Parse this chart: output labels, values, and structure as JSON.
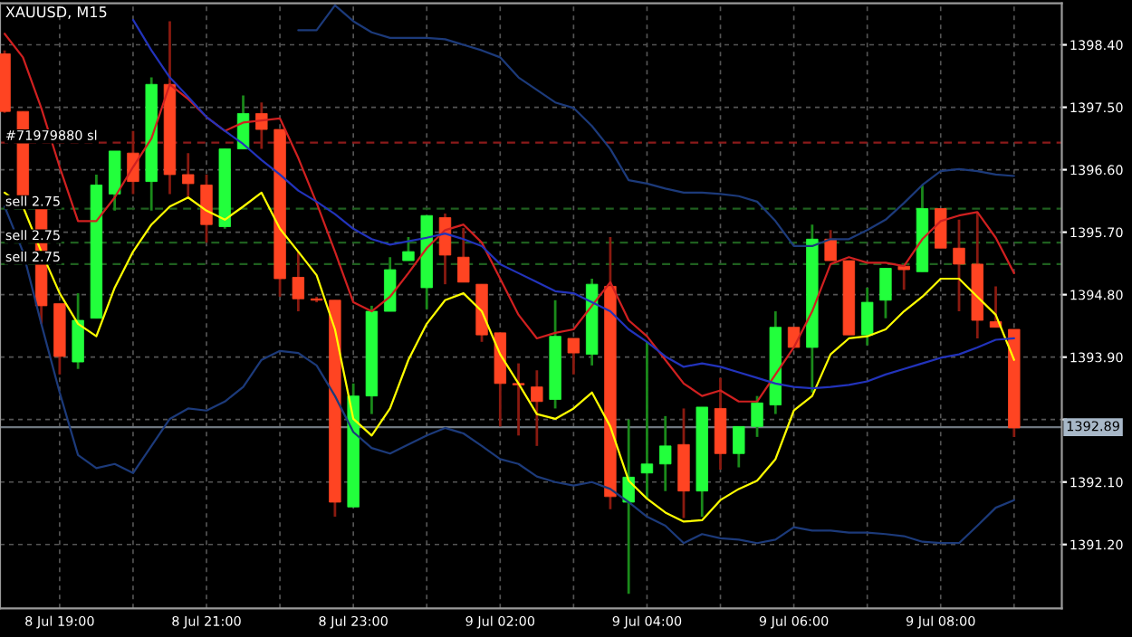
{
  "chart_data": {
    "type": "candlestick",
    "title": "XAUUSD, M15",
    "categories": [
      null,
      null,
      null,
      "8 Jul 19:00",
      null,
      null,
      null,
      null,
      null,
      null,
      null,
      "8 Jul 21:00",
      null,
      null,
      null,
      null,
      null,
      null,
      null,
      "8 Jul 23:00",
      null,
      null,
      null,
      null,
      null,
      null,
      null,
      "9 Jul 02:00",
      null,
      null,
      null,
      null,
      null,
      null,
      null,
      "9 Jul 04:00",
      null,
      null,
      null,
      null,
      null,
      null,
      null,
      "9 Jul 06:00",
      null,
      null,
      null,
      null,
      null,
      null,
      null,
      "9 Jul 08:00",
      null,
      null,
      null,
      null
    ],
    "ohlc": [
      [
        1398.27,
        1398.32,
        1397.42,
        1397.44
      ],
      [
        1397.44,
        1397.44,
        1396.07,
        1396.07
      ],
      [
        1396.07,
        1396.07,
        1394.38,
        1394.64
      ],
      [
        1394.67,
        1394.67,
        1393.65,
        1393.91
      ],
      [
        1393.83,
        1394.82,
        1393.73,
        1394.43
      ],
      [
        1394.46,
        1396.53,
        1394.46,
        1396.38
      ],
      [
        1396.25,
        1396.87,
        1396.01,
        1396.87
      ],
      [
        1396.84,
        1397.16,
        1396.25,
        1396.43
      ],
      [
        1396.43,
        1397.93,
        1396.01,
        1397.83
      ],
      [
        1397.83,
        1398.74,
        1396.25,
        1396.53
      ],
      [
        1396.53,
        1396.84,
        1396.2,
        1396.4
      ],
      [
        1396.38,
        1396.53,
        1395.55,
        1395.81
      ],
      [
        1395.78,
        1396.9,
        1395.75,
        1396.9
      ],
      [
        1396.9,
        1397.67,
        1396.9,
        1397.41
      ],
      [
        1397.41,
        1397.57,
        1396.9,
        1397.18
      ],
      [
        1397.18,
        1397.18,
        1394.77,
        1395.03
      ],
      [
        1395.05,
        1395.42,
        1394.56,
        1394.74
      ],
      [
        1394.74,
        1394.77,
        1394.69,
        1394.72
      ],
      [
        1394.72,
        1394.72,
        1391.6,
        1391.81
      ],
      [
        1391.74,
        1393.52,
        1391.74,
        1393.34
      ],
      [
        1393.34,
        1394.64,
        1393.08,
        1394.56
      ],
      [
        1394.56,
        1395.34,
        1394.56,
        1395.16
      ],
      [
        1395.29,
        1395.63,
        1395.29,
        1395.42
      ],
      [
        1394.9,
        1395.94,
        1394.59,
        1395.94
      ],
      [
        1395.91,
        1395.97,
        1394.95,
        1395.37
      ],
      [
        1395.34,
        1395.76,
        1394.98,
        1394.98
      ],
      [
        1394.95,
        1394.95,
        1394.12,
        1394.22
      ],
      [
        1394.25,
        1394.25,
        1392.9,
        1393.52
      ],
      [
        1393.52,
        1393.81,
        1392.77,
        1393.5
      ],
      [
        1393.47,
        1393.71,
        1392.62,
        1393.26
      ],
      [
        1393.29,
        1394.72,
        1393.16,
        1394.2
      ],
      [
        1394.17,
        1394.17,
        1393.65,
        1393.96
      ],
      [
        1393.94,
        1395.03,
        1393.78,
        1394.95
      ],
      [
        1394.92,
        1395.63,
        1391.71,
        1391.89
      ],
      [
        1391.81,
        1393.0,
        1390.49,
        1392.17
      ],
      [
        1392.23,
        1394.12,
        1391.86,
        1392.36
      ],
      [
        1392.36,
        1393.05,
        1391.97,
        1392.62
      ],
      [
        1392.64,
        1393.16,
        1391.58,
        1391.97
      ],
      [
        1391.97,
        1393.18,
        1391.6,
        1393.18
      ],
      [
        1393.16,
        1393.6,
        1392.28,
        1392.51
      ],
      [
        1392.51,
        1392.9,
        1392.31,
        1392.9
      ],
      [
        1392.9,
        1393.34,
        1392.75,
        1393.24
      ],
      [
        1393.21,
        1394.56,
        1393.08,
        1394.33
      ],
      [
        1394.33,
        1394.33,
        1394.04,
        1394.04
      ],
      [
        1394.04,
        1395.81,
        1393.39,
        1395.6
      ],
      [
        1395.6,
        1395.73,
        1395.29,
        1395.29
      ],
      [
        1395.29,
        1395.29,
        1394.22,
        1394.22
      ],
      [
        1394.22,
        1394.9,
        1394.07,
        1394.69
      ],
      [
        1394.72,
        1395.18,
        1394.46,
        1395.18
      ],
      [
        1395.21,
        1395.21,
        1394.87,
        1395.16
      ],
      [
        1395.13,
        1396.38,
        1395.13,
        1396.04
      ],
      [
        1396.04,
        1396.04,
        1395.47,
        1395.47
      ],
      [
        1395.47,
        1395.88,
        1394.56,
        1395.24
      ],
      [
        1395.24,
        1395.99,
        1394.17,
        1394.43
      ],
      [
        1394.41,
        1394.92,
        1394.33,
        1394.33
      ],
      [
        1394.3,
        1394.3,
        1392.75,
        1392.88
      ]
    ],
    "series": [
      {
        "type": "line",
        "color": "#ffff00",
        "values": [
          1396.27,
          1396.07,
          1395.42,
          1394.82,
          1394.38,
          1394.2,
          1394.9,
          1395.42,
          1395.81,
          1396.07,
          1396.2,
          1396.01,
          1395.88,
          1396.07,
          1396.27,
          1395.75,
          1395.42,
          1395.08,
          1394.3,
          1393.01,
          1392.77,
          1393.16,
          1393.86,
          1394.38,
          1394.72,
          1394.82,
          1394.56,
          1393.94,
          1393.52,
          1393.08,
          1393.01,
          1393.16,
          1393.39,
          1392.9,
          1392.12,
          1391.86,
          1391.66,
          1391.53,
          1391.55,
          1391.84,
          1392.0,
          1392.12,
          1392.43,
          1393.13,
          1393.34,
          1393.94,
          1394.17,
          1394.2,
          1394.3,
          1394.56,
          1394.77,
          1395.03,
          1395.03,
          1394.77,
          1394.51,
          1393.86
        ]
      },
      {
        "type": "line",
        "color": "#d02020",
        "values": [
          1398.56,
          1398.22,
          1397.49,
          1396.64,
          1395.86,
          1395.86,
          1396.2,
          1396.64,
          1397.05,
          1397.83,
          1397.62,
          1397.36,
          1397.16,
          1397.28,
          1397.31,
          1397.34,
          1396.77,
          1396.12,
          1395.42,
          1394.69,
          1394.56,
          1394.77,
          1395.11,
          1395.47,
          1395.73,
          1395.81,
          1395.55,
          1395.03,
          1394.51,
          1394.17,
          1394.25,
          1394.3,
          1394.64,
          1394.98,
          1394.43,
          1394.2,
          1393.86,
          1393.52,
          1393.34,
          1393.42,
          1393.26,
          1393.26,
          1393.65,
          1394.04,
          1394.56,
          1395.24,
          1395.34,
          1395.26,
          1395.26,
          1395.21,
          1395.6,
          1395.86,
          1395.94,
          1395.99,
          1395.62,
          1395.11
        ]
      },
      {
        "type": "line",
        "color": "#1c3a7a",
        "values": [
          null,
          null,
          null,
          null,
          null,
          null,
          null,
          null,
          null,
          null,
          null,
          null,
          null,
          null,
          null,
          null,
          1398.61,
          1398.61,
          1398.97,
          1398.74,
          1398.58,
          1398.5,
          1398.5,
          1398.5,
          1398.48,
          1398.4,
          1398.32,
          1398.22,
          1397.93,
          1397.75,
          1397.57,
          1397.49,
          1397.23,
          1396.9,
          1396.45,
          1396.4,
          1396.33,
          1396.27,
          1396.27,
          1396.25,
          1396.22,
          1396.14,
          1395.86,
          1395.5,
          1395.5,
          1395.6,
          1395.6,
          1395.73,
          1395.88,
          1396.12,
          1396.38,
          1396.58,
          1396.61,
          1396.58,
          1396.53,
          1396.51
        ]
      },
      {
        "type": "line",
        "color": "#2233bb",
        "values": [
          null,
          null,
          null,
          null,
          null,
          null,
          null,
          1398.76,
          1398.32,
          1397.93,
          1397.65,
          1397.36,
          1397.16,
          1396.97,
          1396.74,
          1396.53,
          1396.3,
          1396.14,
          1395.96,
          1395.75,
          1395.6,
          1395.52,
          1395.57,
          1395.62,
          1395.68,
          1395.6,
          1395.5,
          1395.24,
          1395.11,
          1394.98,
          1394.85,
          1394.82,
          1394.69,
          1394.56,
          1394.3,
          1394.12,
          1393.91,
          1393.76,
          1393.81,
          1393.76,
          1393.68,
          1393.6,
          1393.52,
          1393.47,
          1393.45,
          1393.47,
          1393.5,
          1393.55,
          1393.65,
          1393.73,
          1393.81,
          1393.89,
          1393.94,
          1394.04,
          1394.15,
          1394.17
        ]
      },
      {
        "type": "line",
        "color": "#1c3a7a",
        "values": [
          1396.07,
          1395.42,
          1394.38,
          1393.39,
          1392.49,
          1392.3,
          1392.36,
          1392.23,
          1392.62,
          1393.01,
          1393.16,
          1393.13,
          1393.26,
          1393.47,
          1393.86,
          1393.99,
          1393.96,
          1393.78,
          1393.34,
          1392.82,
          1392.59,
          1392.51,
          1392.64,
          1392.77,
          1392.88,
          1392.8,
          1392.62,
          1392.43,
          1392.36,
          1392.18,
          1392.1,
          1392.05,
          1392.1,
          1392.0,
          1391.81,
          1391.6,
          1391.47,
          1391.22,
          1391.35,
          1391.29,
          1391.27,
          1391.22,
          1391.27,
          1391.45,
          1391.4,
          1391.4,
          1391.37,
          1391.37,
          1391.35,
          1391.32,
          1391.24,
          1391.22,
          1391.22,
          1391.47,
          1391.73,
          1391.84
        ]
      }
    ],
    "ylim": [
      1390.28,
      1399.0
    ],
    "yticks": [
      {
        "value": 1391.2,
        "label": "1391.20"
      },
      {
        "value": 1392.1,
        "label": "1392.10"
      },
      {
        "value": 1393.0,
        "label": null
      },
      {
        "value": 1393.9,
        "label": "1393.90"
      },
      {
        "value": 1394.8,
        "label": "1394.80"
      },
      {
        "value": 1395.7,
        "label": "1395.70"
      },
      {
        "value": 1396.6,
        "label": "1396.60"
      },
      {
        "value": 1397.5,
        "label": "1397.50"
      },
      {
        "value": 1398.4,
        "label": "1398.40"
      }
    ],
    "ref_lines": [
      {
        "axis": "y",
        "value": 1396.99,
        "label": "#71979880 sl",
        "color": "#8b1a1a",
        "line_style": "dashed"
      },
      {
        "axis": "y",
        "value": 1396.04,
        "label": "sell 2.75",
        "color": "#1f5f1f",
        "line_style": "dashed"
      },
      {
        "axis": "y",
        "value": 1395.55,
        "label": "sell 2.75",
        "color": "#1f5f1f",
        "line_style": "dashed"
      },
      {
        "axis": "y",
        "value": 1395.24,
        "label": "sell 2.75",
        "color": "#1f5f1f",
        "line_style": "dashed"
      },
      {
        "axis": "y",
        "value": 1392.89,
        "label": "1392.89",
        "color": "#707880",
        "line_style": "solid"
      }
    ],
    "grid": true
  }
}
